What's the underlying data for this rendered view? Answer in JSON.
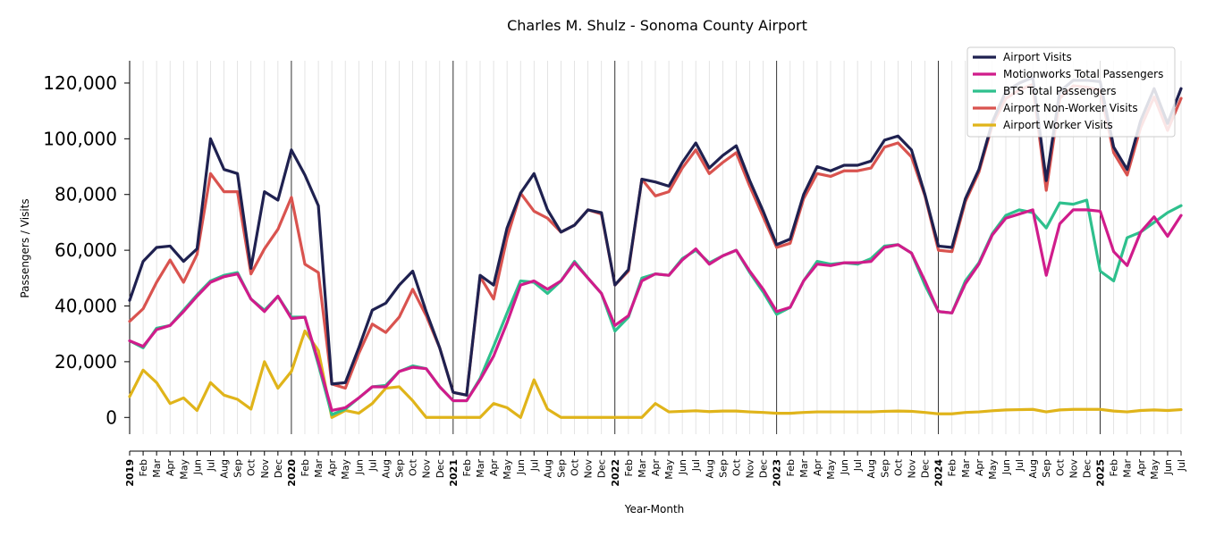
{
  "chart_data": {
    "type": "line",
    "title": "Charles M. Shulz - Sonoma County Airport",
    "xlabel": "Year-Month",
    "ylabel": "Passengers / Visits",
    "ylim": [
      -6000,
      128000
    ],
    "y_ticks": [
      0,
      20000,
      40000,
      60000,
      80000,
      100000,
      120000
    ],
    "y_tick_labels": [
      "0",
      "20,000",
      "40,000",
      "60,000",
      "80,000",
      "100,000",
      "120,000"
    ],
    "grid": "vertical lines at each month",
    "legend_position": "top-right",
    "categories": [
      "2019",
      "Feb",
      "Mar",
      "Apr",
      "May",
      "Jun",
      "Jul",
      "Aug",
      "Sep",
      "Oct",
      "Nov",
      "Dec",
      "2020",
      "Feb",
      "Mar",
      "Apr",
      "May",
      "Jun",
      "Jul",
      "Aug",
      "Sep",
      "Oct",
      "Nov",
      "Dec",
      "2021",
      "Feb",
      "Mar",
      "Apr",
      "May",
      "Jun",
      "Jul",
      "Aug",
      "Sep",
      "Oct",
      "Nov",
      "Dec",
      "2022",
      "Feb",
      "Mar",
      "Apr",
      "May",
      "Jun",
      "Jul",
      "Aug",
      "Sep",
      "Oct",
      "Nov",
      "Dec",
      "2023",
      "Feb",
      "Mar",
      "Apr",
      "May",
      "Jun",
      "Jul",
      "Aug",
      "Sep",
      "Oct",
      "Nov",
      "Dec",
      "2024",
      "Feb",
      "Mar",
      "Apr",
      "May",
      "Jun",
      "Jul",
      "Aug",
      "Sep",
      "Oct",
      "Nov",
      "Dec",
      "2025",
      "Feb",
      "Mar",
      "Apr",
      "May",
      "Jun",
      "Jul"
    ],
    "series": [
      {
        "name": "Airport Visits",
        "color": "#1f2150",
        "values": [
          42000,
          56000,
          61000,
          61500,
          56000,
          60500,
          100000,
          89000,
          87500,
          53500,
          81000,
          78000,
          96000,
          87000,
          76000,
          12000,
          12500,
          25000,
          38500,
          41000,
          47500,
          52500,
          38000,
          25000,
          9000,
          8000,
          51000,
          47500,
          68000,
          80500,
          87500,
          74500,
          66500,
          69000,
          74500,
          73500,
          47500,
          53000,
          85500,
          84500,
          83000,
          91500,
          98500,
          89500,
          94000,
          97500,
          85000,
          74000,
          62000,
          64000,
          80000,
          90000,
          88500,
          90500,
          90500,
          92000,
          99500,
          101000,
          96000,
          80000,
          61500,
          61000,
          78500,
          89000,
          106000,
          117000,
          120000,
          122000,
          85000,
          117000,
          121000,
          121000,
          120500,
          97000,
          89000,
          106500,
          118000,
          105500,
          118000
        ]
      },
      {
        "name": "Motionworks Total Passengers",
        "color": "#d01c8b",
        "values": [
          27500,
          25500,
          31500,
          33000,
          38000,
          43500,
          48500,
          50500,
          51500,
          42500,
          38000,
          43500,
          35500,
          36000,
          20000,
          2500,
          3500,
          7000,
          11000,
          11000,
          16500,
          18000,
          17500,
          11000,
          6000,
          6000,
          13500,
          22000,
          34000,
          47500,
          49000,
          46000,
          49000,
          55500,
          50000,
          44500,
          33000,
          36500,
          49000,
          51500,
          51000,
          56500,
          60500,
          55000,
          58000,
          60000,
          52500,
          46000,
          38000,
          39500,
          49000,
          55000,
          54500,
          55500,
          55500,
          56000,
          61000,
          62000,
          59000,
          49000,
          38000,
          37500,
          48000,
          55000,
          65500,
          71500,
          73000,
          74500,
          51000,
          69500,
          74500,
          74500,
          74000,
          59500,
          54500,
          66500,
          72000,
          65000,
          72500
        ]
      },
      {
        "name": "BTS Total Passengers",
        "color": "#2ec08d",
        "values": [
          27500,
          25000,
          32000,
          33000,
          38500,
          44000,
          49000,
          51000,
          52000,
          42500,
          38500,
          43500,
          36000,
          36000,
          19000,
          1000,
          3000,
          7000,
          11000,
          11500,
          16500,
          18500,
          17500,
          11000,
          6000,
          6000,
          14000,
          25500,
          37500,
          49000,
          48500,
          44500,
          49000,
          56000,
          50000,
          44500,
          31000,
          36000,
          50000,
          51500,
          51000,
          57000,
          60000,
          55500,
          58000,
          60000,
          52000,
          45000,
          37000,
          39500,
          49000,
          56000,
          55000,
          55500,
          55000,
          57000,
          61500,
          62000,
          59000,
          47500,
          38000,
          37500,
          49000,
          55500,
          66000,
          72500,
          74500,
          73500,
          68000,
          77000,
          76500,
          78000,
          52500,
          49000,
          64500,
          66500,
          70000,
          73500,
          76000
        ]
      },
      {
        "name": "Airport Non-Worker Visits",
        "color": "#d9534f",
        "values": [
          34500,
          39000,
          48500,
          56500,
          48500,
          58500,
          87500,
          81000,
          81000,
          51500,
          60500,
          67500,
          79000,
          55000,
          52000,
          12000,
          10500,
          23000,
          33500,
          30500,
          36000,
          46000,
          36500,
          25000,
          9000,
          8000,
          50500,
          42500,
          64500,
          80500,
          74000,
          71500,
          66500,
          69000,
          74500,
          73000,
          47500,
          52500,
          85500,
          79500,
          81000,
          89500,
          96000,
          87500,
          91500,
          95000,
          83000,
          72000,
          61000,
          62500,
          78500,
          87500,
          86500,
          88500,
          88500,
          89500,
          97000,
          98500,
          93500,
          79500,
          60000,
          59500,
          77500,
          88000,
          105000,
          114500,
          117500,
          119500,
          81500,
          114500,
          119000,
          118500,
          117500,
          95000,
          87000,
          104000,
          115000,
          103000,
          114500
        ]
      },
      {
        "name": "Airport Worker Visits",
        "color": "#e0b41a",
        "values": [
          7500,
          17000,
          12500,
          5000,
          7000,
          2500,
          12500,
          8000,
          6500,
          3000,
          20000,
          10500,
          16500,
          31000,
          24000,
          0,
          2500,
          1500,
          5000,
          10500,
          11000,
          6000,
          0,
          0,
          0,
          0,
          0,
          5000,
          3500,
          0,
          13500,
          3000,
          0,
          0,
          0,
          0,
          0,
          0,
          0,
          5000,
          2000,
          2200,
          2400,
          2100,
          2300,
          2300,
          2000,
          1800,
          1500,
          1500,
          1800,
          2000,
          2000,
          2000,
          2000,
          2000,
          2200,
          2300,
          2200,
          1800,
          1300,
          1300,
          1800,
          2000,
          2400,
          2700,
          2800,
          2900,
          2000,
          2700,
          2900,
          2900,
          2900,
          2300,
          2000,
          2500,
          2700,
          2500,
          2800
        ]
      }
    ]
  }
}
